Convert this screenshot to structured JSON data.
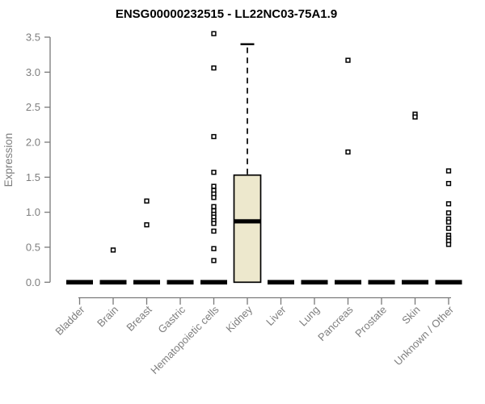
{
  "chart_data": {
    "type": "boxplot",
    "title": "ENSG00000232515 - LL22NC03-75A1.9",
    "ylabel": "Expression",
    "xlabel": "",
    "ylim": [
      0.0,
      3.5
    ],
    "grid": false,
    "ytick_labels": [
      "0.0",
      "0.5",
      "1.0",
      "1.5",
      "2.0",
      "2.5",
      "3.0",
      "3.5"
    ],
    "categories": [
      "Bladder",
      "Brain",
      "Breast",
      "Gastric",
      "Hematopoietic cells",
      "Kidney",
      "Liver",
      "Lung",
      "Pancreas",
      "Prostate",
      "Skin",
      "Unknown / Other"
    ],
    "series": [
      {
        "category": "Bladder",
        "q1": 0,
        "median": 0,
        "q3": 0,
        "whisker_low": 0,
        "whisker_high": 0,
        "outliers": []
      },
      {
        "category": "Brain",
        "q1": 0,
        "median": 0,
        "q3": 0,
        "whisker_low": 0,
        "whisker_high": 0,
        "outliers": [
          0.46
        ]
      },
      {
        "category": "Breast",
        "q1": 0,
        "median": 0,
        "q3": 0,
        "whisker_low": 0,
        "whisker_high": 0,
        "outliers": [
          1.16,
          0.82
        ]
      },
      {
        "category": "Gastric",
        "q1": 0,
        "median": 0,
        "q3": 0,
        "whisker_low": 0,
        "whisker_high": 0,
        "outliers": []
      },
      {
        "category": "Hematopoietic cells",
        "q1": 0,
        "median": 0,
        "q3": 0,
        "whisker_low": 0,
        "whisker_high": 0,
        "outliers": [
          3.55,
          3.06,
          2.08,
          1.57,
          1.37,
          1.31,
          1.26,
          1.21,
          1.08,
          1.02,
          0.97,
          0.93,
          0.88,
          0.84,
          0.73,
          0.48,
          0.31
        ]
      },
      {
        "category": "Kidney",
        "q1": 0,
        "median": 0.87,
        "q3": 1.53,
        "whisker_low": 0,
        "whisker_high": 3.4,
        "outliers": []
      },
      {
        "category": "Liver",
        "q1": 0,
        "median": 0,
        "q3": 0,
        "whisker_low": 0,
        "whisker_high": 0,
        "outliers": []
      },
      {
        "category": "Lung",
        "q1": 0,
        "median": 0,
        "q3": 0,
        "whisker_low": 0,
        "whisker_high": 0,
        "outliers": []
      },
      {
        "category": "Pancreas",
        "q1": 0,
        "median": 0,
        "q3": 0,
        "whisker_low": 0,
        "whisker_high": 0,
        "outliers": [
          3.17,
          1.86
        ]
      },
      {
        "category": "Prostate",
        "q1": 0,
        "median": 0,
        "q3": 0,
        "whisker_low": 0,
        "whisker_high": 0,
        "outliers": []
      },
      {
        "category": "Skin",
        "q1": 0,
        "median": 0,
        "q3": 0,
        "whisker_low": 0,
        "whisker_high": 0,
        "outliers": [
          2.4,
          2.36
        ]
      },
      {
        "category": "Unknown / Other",
        "q1": 0,
        "median": 0,
        "q3": 0,
        "whisker_low": 0,
        "whisker_high": 0,
        "outliers": [
          1.59,
          1.41,
          1.12,
          0.99,
          0.9,
          0.86,
          0.77,
          0.67,
          0.63,
          0.59,
          0.54
        ]
      }
    ],
    "colors": {
      "box_fill": "#EDE8CD",
      "box_stroke": "#000000",
      "median": "#000000",
      "flat_bar": "#000000",
      "whisker": "#000000",
      "outlier_stroke": "#000000",
      "outlier_fill": "#ffffff",
      "axis": "#7a7a7a",
      "text": "#7e7e7e",
      "title": "#000000",
      "background": "#ffffff"
    }
  }
}
